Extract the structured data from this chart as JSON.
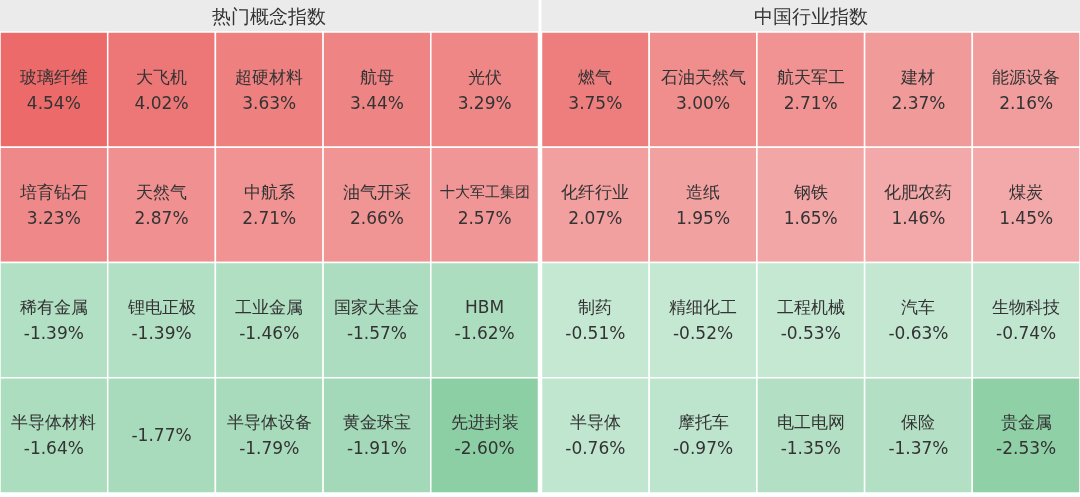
{
  "chart_data": [
    {
      "type": "other",
      "title": "热门概念指数",
      "categories": [
        "玻璃纤维",
        "大飞机",
        "超硬材料",
        "航母",
        "光伏",
        "培育钻石",
        "天然气",
        "中航系",
        "油气开采",
        "十大军工集团",
        "稀有金属",
        "锂电正极",
        "工业金属",
        "国家大基金",
        "HBM",
        "半导体材料",
        null,
        "半导体设备",
        "黄金珠宝",
        "先进封装"
      ],
      "values": [
        4.54,
        4.02,
        3.63,
        3.44,
        3.29,
        3.23,
        2.87,
        2.71,
        2.66,
        2.57,
        -1.39,
        -1.39,
        -1.46,
        -1.57,
        -1.62,
        -1.64,
        -1.77,
        -1.79,
        -1.91,
        -2.6
      ],
      "value_labels": [
        "4.54%",
        "4.02%",
        "3.63%",
        "3.44%",
        "3.29%",
        "3.23%",
        "2.87%",
        "2.71%",
        "2.66%",
        "2.57%",
        "-1.39%",
        "-1.39%",
        "-1.46%",
        "-1.57%",
        "-1.62%",
        "-1.64%",
        "-1.77%",
        "-1.79%",
        "-1.91%",
        "-2.60%"
      ]
    },
    {
      "type": "other",
      "title": "中国行业指数",
      "categories": [
        "燃气",
        "石油天然气",
        "航天军工",
        "建材",
        "能源设备",
        "化纤行业",
        "造纸",
        "钢铁",
        "化肥农药",
        "煤炭",
        "制药",
        "精细化工",
        "工程机械",
        "汽车",
        "生物科技",
        "半导体",
        "摩托车",
        "电工电网",
        "保险",
        "贵金属"
      ],
      "values": [
        3.75,
        3.0,
        2.71,
        2.37,
        2.16,
        2.07,
        1.95,
        1.65,
        1.46,
        1.45,
        -0.51,
        -0.52,
        -0.53,
        -0.63,
        -0.74,
        -0.76,
        -0.97,
        -1.35,
        -1.37,
        -2.53
      ],
      "value_labels": [
        "3.75%",
        "3.00%",
        "2.71%",
        "2.37%",
        "2.16%",
        "2.07%",
        "1.95%",
        "1.65%",
        "1.46%",
        "1.45%",
        "-0.51%",
        "-0.52%",
        "-0.53%",
        "-0.63%",
        "-0.74%",
        "-0.76%",
        "-0.97%",
        "-1.35%",
        "-1.37%",
        "-2.53%"
      ]
    }
  ]
}
